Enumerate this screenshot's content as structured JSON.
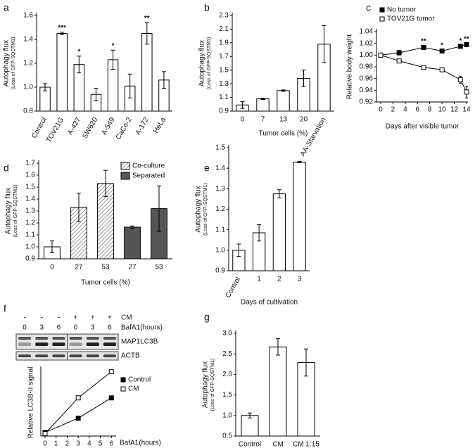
{
  "chart_data": [
    {
      "panel": "a",
      "type": "bar",
      "ylabel": "Autophagy flux",
      "ylabel_sub": "(Loss of GFP-SQSTM1)",
      "categories": [
        "Control",
        "TOV21G",
        "A-427",
        "SW620",
        "A-549",
        "CaCo-2",
        "A-172",
        "HeLa"
      ],
      "values": [
        1.0,
        1.45,
        1.19,
        0.94,
        1.23,
        1.01,
        1.45,
        1.06
      ],
      "errors": [
        0.03,
        0.01,
        0.07,
        0.05,
        0.08,
        0.1,
        0.09,
        0.07
      ],
      "annotations": [
        null,
        "***",
        "*",
        null,
        "*",
        null,
        "**",
        null
      ],
      "color": "#ffffff",
      "ylim": [
        0.8,
        1.6
      ],
      "yticks": [
        0.8,
        {
          "value": 1,
          "label": "1.0"
        },
        1.2,
        1.4,
        1.6
      ]
    },
    {
      "panel": "b",
      "type": "bar",
      "ylabel": "Autophagy flux",
      "ylabel_sub": "(Loss of GFP-SQSTM1)",
      "xlabel": "Tumor cells (%)",
      "categories": [
        "0",
        "7",
        "13",
        "20",
        "AA-Starvation"
      ],
      "values": [
        0.99,
        1.08,
        1.2,
        1.38,
        1.88
      ],
      "errors": [
        0.05,
        0.01,
        0.01,
        0.12,
        0.27
      ],
      "color": "#ffffff",
      "ylim": [
        0.9,
        2.3
      ],
      "yticks": [
        0.9,
        1.1,
        1.3,
        1.5,
        1.7,
        1.9,
        2.1,
        2.3
      ]
    },
    {
      "panel": "c",
      "type": "line",
      "ylabel": "Relative body weight",
      "xlabel": "Days after visible tumor",
      "x": [
        0,
        3,
        7,
        10,
        13,
        14
      ],
      "series": [
        {
          "name": "No tumor",
          "color": "#000000",
          "marker": "filled",
          "values": [
            1.0,
            1.004,
            1.013,
            1.007,
            1.015,
            1.018
          ],
          "errors": [
            0.001,
            0.004,
            0.003,
            0.002,
            0.002,
            0.002
          ]
        },
        {
          "name": "TOV21G tumor",
          "color": "#000000",
          "marker": "open",
          "values": [
            1.0,
            0.99,
            0.979,
            0.975,
            0.958,
            0.937
          ],
          "errors": [
            0.001,
            0.003,
            0.001,
            0.003,
            0.006,
            0.01
          ]
        }
      ],
      "annotations": [
        null,
        null,
        "**",
        "*",
        "*",
        "**"
      ],
      "xlim": [
        0,
        14
      ],
      "xticks": [
        0,
        2,
        4,
        6,
        8,
        10,
        12,
        14
      ],
      "ylim": [
        0.92,
        1.04
      ],
      "yticks": [
        0.92,
        0.94,
        0.96,
        0.98,
        {
          "value": 1,
          "label": "1.00"
        },
        {
          "value": 1.02,
          "label": "1.02"
        },
        {
          "value": 1.04,
          "label": "1.04"
        }
      ]
    },
    {
      "panel": "d",
      "type": "bar",
      "ylabel": "Autophagy flux",
      "ylabel_sub": "(Loss of GFP-SQSTM1)",
      "xlabel": "Tumor cells (%)",
      "categories": [
        "0",
        "27",
        "53",
        "27",
        "53"
      ],
      "series": [
        {
          "color": "#ffffff",
          "values": [
            1.0,
            null,
            null,
            null,
            null
          ],
          "errors": [
            0.05,
            null,
            null,
            null,
            null
          ]
        },
        {
          "name": "Co-culture",
          "color": "#ffffff",
          "hatch": true,
          "values": [
            null,
            1.33,
            1.53,
            null,
            null
          ],
          "errors": [
            null,
            0.12,
            0.11,
            null,
            null
          ]
        },
        {
          "name": "Separated",
          "color": "#555555",
          "values": [
            null,
            null,
            null,
            1.165,
            1.32
          ],
          "errors": [
            null,
            null,
            null,
            0.01,
            0.19
          ]
        }
      ],
      "ylim": [
        0.9,
        1.7
      ],
      "yticks": [
        0.9,
        {
          "value": 1,
          "label": "1.0"
        },
        1.1,
        1.2,
        1.3,
        1.4,
        1.5,
        1.6,
        1.7
      ]
    },
    {
      "panel": "e",
      "type": "bar",
      "ylabel": "Autophagy flux",
      "ylabel_sub": "(Loss of GFP-SQSTM1)",
      "xlabel": "Days of cultivation",
      "categories": [
        "Control",
        "1",
        "2",
        "3"
      ],
      "values": [
        1.0,
        1.085,
        1.275,
        1.43
      ],
      "errors": [
        0.03,
        0.04,
        0.02,
        0.003
      ],
      "color": "#ffffff",
      "ylim": [
        0.9,
        1.5
      ],
      "yticks": [
        0.9,
        {
          "value": 1,
          "label": "1.0"
        },
        1.1,
        1.2,
        1.3,
        1.4,
        1.5
      ]
    },
    {
      "panel": "f",
      "type": "line",
      "ylabel": "Relative LC3B-II signal",
      "xlabel": "BafA1(hours)",
      "blot": {
        "cm_signs": [
          "-",
          "-",
          "-",
          "+",
          "+",
          "+"
        ],
        "times": [
          "0",
          "3",
          "6",
          "0",
          "3",
          "6"
        ],
        "cm_label": "CM",
        "time_label": "BafA1(hours)",
        "bands": [
          "MAP1LC3B",
          "ACTB"
        ]
      },
      "x": [
        0,
        3,
        6
      ],
      "series": [
        {
          "name": "Control",
          "color": "#000000",
          "marker": "filled",
          "values": [
            1.5,
            7.5,
            16
          ]
        },
        {
          "name": "CM",
          "color": "#000000",
          "marker": "open",
          "values": [
            1,
            16,
            27
          ]
        }
      ],
      "xlim": [
        0,
        6.3
      ],
      "xticks": [
        0,
        1,
        2,
        3,
        4,
        5,
        6
      ],
      "ylim": [
        0,
        28
      ]
    },
    {
      "panel": "g",
      "type": "bar",
      "ylabel": "Autophagy flux",
      "ylabel_sub": "(Loss of GFP-SQSTM1)",
      "categories": [
        "Control",
        "CM",
        "CM 1:15"
      ],
      "values": [
        1.0,
        2.67,
        2.29
      ],
      "errors": [
        0.06,
        0.2,
        0.33
      ],
      "color": "#ffffff",
      "ylim": [
        0.5,
        3.0
      ],
      "yticks": [
        0.5,
        {
          "value": 1,
          "label": "1.0"
        },
        1.5,
        {
          "value": 2,
          "label": "2.0"
        },
        2.5,
        {
          "value": 3,
          "label": "3.0"
        }
      ]
    }
  ]
}
